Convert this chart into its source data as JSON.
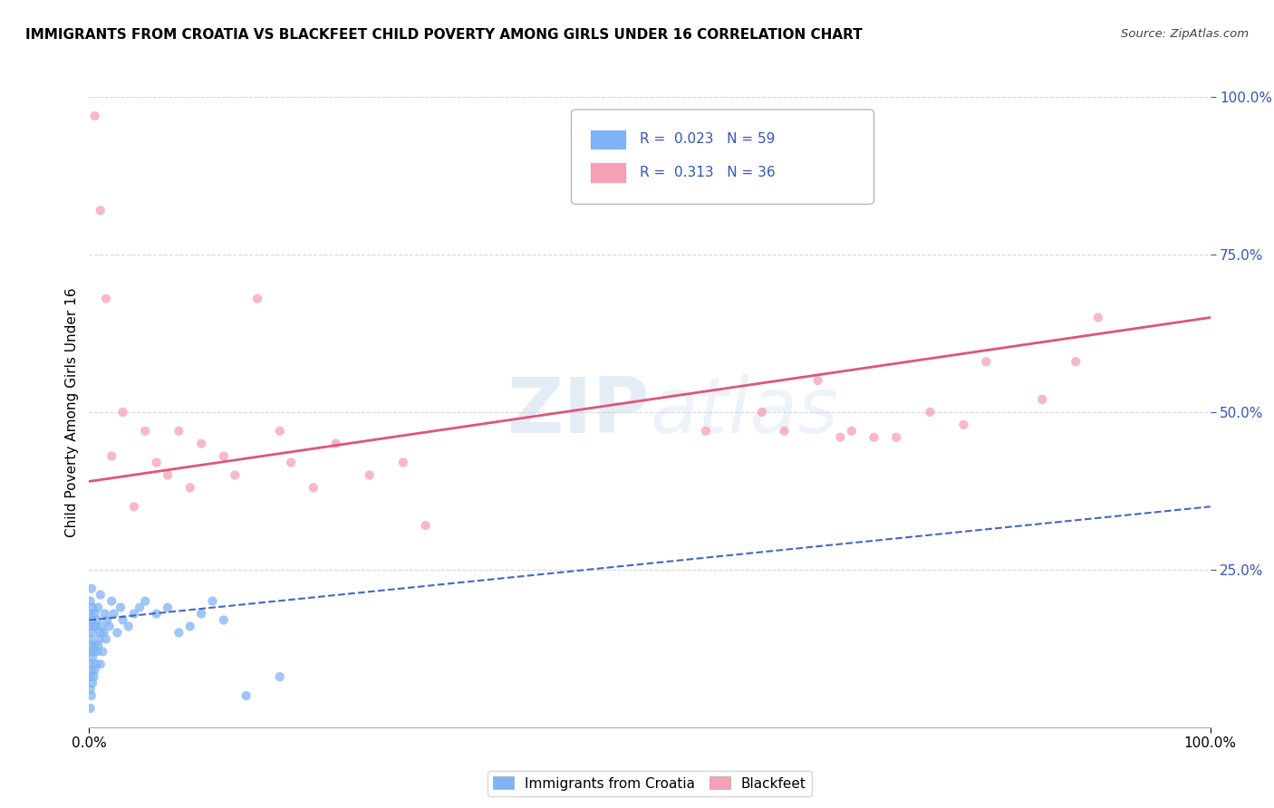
{
  "title": "IMMIGRANTS FROM CROATIA VS BLACKFEET CHILD POVERTY AMONG GIRLS UNDER 16 CORRELATION CHART",
  "source": "Source: ZipAtlas.com",
  "ylabel": "Child Poverty Among Girls Under 16",
  "watermark_text": "ZIPAtlas",
  "xlim": [
    0,
    1.0
  ],
  "ylim": [
    0,
    1.0
  ],
  "ytick_positions": [
    0.25,
    0.5,
    0.75,
    1.0
  ],
  "ytick_labels": [
    "25.0%",
    "50.0%",
    "75.0%",
    "100.0%"
  ],
  "xtick_positions": [
    0.0,
    1.0
  ],
  "xtick_labels": [
    "0.0%",
    "100.0%"
  ],
  "croatia_color": "#7fb3f5",
  "blackfeet_color": "#f5a0b5",
  "croatia_line_color": "#4466cc",
  "blackfeet_line_color": "#e05575",
  "right_axis_color": "#3355bb",
  "background_color": "#ffffff",
  "grid_color": "#d8d8d8",
  "title_fontsize": 11,
  "source_fontsize": 9.5,
  "axis_label_fontsize": 11,
  "tick_fontsize": 11,
  "legend_top_label1": "R =  0.023   N = 59",
  "legend_top_label2": "R =  0.313   N = 36",
  "legend_bottom_label1": "Immigrants from Croatia",
  "legend_bottom_label2": "Blackfeet",
  "croatia_scatter_x": [
    0.001,
    0.001,
    0.001,
    0.001,
    0.001,
    0.001,
    0.001,
    0.001,
    0.001,
    0.002,
    0.002,
    0.002,
    0.002,
    0.002,
    0.003,
    0.003,
    0.003,
    0.003,
    0.004,
    0.004,
    0.004,
    0.005,
    0.005,
    0.005,
    0.006,
    0.006,
    0.007,
    0.007,
    0.008,
    0.008,
    0.009,
    0.01,
    0.01,
    0.01,
    0.011,
    0.012,
    0.013,
    0.014,
    0.015,
    0.016,
    0.018,
    0.02,
    0.022,
    0.025,
    0.028,
    0.03,
    0.035,
    0.04,
    0.045,
    0.05,
    0.06,
    0.07,
    0.08,
    0.09,
    0.1,
    0.11,
    0.12,
    0.14,
    0.17
  ],
  "croatia_scatter_y": [
    0.03,
    0.06,
    0.08,
    0.1,
    0.12,
    0.14,
    0.16,
    0.18,
    0.2,
    0.05,
    0.09,
    0.13,
    0.17,
    0.22,
    0.07,
    0.11,
    0.15,
    0.19,
    0.08,
    0.12,
    0.16,
    0.09,
    0.13,
    0.18,
    0.1,
    0.16,
    0.12,
    0.17,
    0.13,
    0.19,
    0.14,
    0.1,
    0.15,
    0.21,
    0.16,
    0.12,
    0.15,
    0.18,
    0.14,
    0.17,
    0.16,
    0.2,
    0.18,
    0.15,
    0.19,
    0.17,
    0.16,
    0.18,
    0.19,
    0.2,
    0.18,
    0.19,
    0.15,
    0.16,
    0.18,
    0.2,
    0.17,
    0.05,
    0.08
  ],
  "blackfeet_scatter_x": [
    0.005,
    0.01,
    0.015,
    0.02,
    0.03,
    0.04,
    0.05,
    0.06,
    0.07,
    0.08,
    0.09,
    0.1,
    0.12,
    0.13,
    0.15,
    0.17,
    0.18,
    0.2,
    0.22,
    0.25,
    0.28,
    0.3,
    0.55,
    0.6,
    0.62,
    0.65,
    0.67,
    0.68,
    0.7,
    0.72,
    0.75,
    0.78,
    0.8,
    0.85,
    0.88,
    0.9
  ],
  "blackfeet_scatter_y": [
    0.97,
    0.82,
    0.68,
    0.43,
    0.5,
    0.35,
    0.47,
    0.42,
    0.4,
    0.47,
    0.38,
    0.45,
    0.43,
    0.4,
    0.68,
    0.47,
    0.42,
    0.38,
    0.45,
    0.4,
    0.42,
    0.32,
    0.47,
    0.5,
    0.47,
    0.55,
    0.46,
    0.47,
    0.46,
    0.46,
    0.5,
    0.48,
    0.58,
    0.52,
    0.58,
    0.65
  ],
  "croatia_trend_x": [
    0.0,
    1.0
  ],
  "croatia_trend_y": [
    0.17,
    0.35
  ],
  "blackfeet_trend_x": [
    0.0,
    1.0
  ],
  "blackfeet_trend_y": [
    0.39,
    0.65
  ]
}
